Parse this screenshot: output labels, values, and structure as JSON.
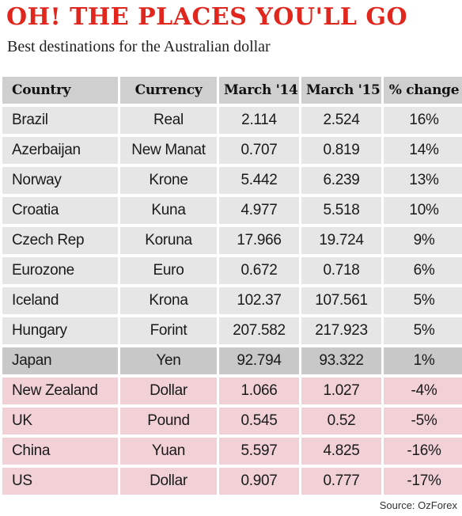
{
  "title": "OH! THE PLACES YOU'LL GO",
  "subtitle": "Best destinations for the Australian dollar",
  "source": "Source: OzForex",
  "colors": {
    "title": "#e0261d",
    "header_bg": "#cfcfcf",
    "row_bg": "#e6e6e6",
    "highlight_bg": "#c8c8c8",
    "negative_bg": "#f1d1d6"
  },
  "chart_data": {
    "type": "table",
    "columns": [
      "Country",
      "Currency",
      "March '14",
      "March '15",
      "% change"
    ],
    "rows": [
      {
        "country": "Brazil",
        "currency": "Real",
        "mar14": "2.114",
        "mar15": "2.524",
        "change": "16%",
        "tone": "grey"
      },
      {
        "country": "Azerbaijan",
        "currency": "New Manat",
        "mar14": "0.707",
        "mar15": "0.819",
        "change": "14%",
        "tone": "grey"
      },
      {
        "country": "Norway",
        "currency": "Krone",
        "mar14": "5.442",
        "mar15": "6.239",
        "change": "13%",
        "tone": "grey"
      },
      {
        "country": "Croatia",
        "currency": "Kuna",
        "mar14": "4.977",
        "mar15": "5.518",
        "change": "10%",
        "tone": "grey"
      },
      {
        "country": "Czech Rep",
        "currency": "Koruna",
        "mar14": "17.966",
        "mar15": "19.724",
        "change": "9%",
        "tone": "grey"
      },
      {
        "country": "Eurozone",
        "currency": "Euro",
        "mar14": "0.672",
        "mar15": "0.718",
        "change": "6%",
        "tone": "grey"
      },
      {
        "country": "Iceland",
        "currency": "Krona",
        "mar14": "102.37",
        "mar15": "107.561",
        "change": "5%",
        "tone": "grey"
      },
      {
        "country": "Hungary",
        "currency": "Forint",
        "mar14": "207.582",
        "mar15": "217.923",
        "change": "5%",
        "tone": "grey"
      },
      {
        "country": "Japan",
        "currency": "Yen",
        "mar14": "92.794",
        "mar15": "93.322",
        "change": "1%",
        "tone": "highlight"
      },
      {
        "country": "New Zealand",
        "currency": "Dollar",
        "mar14": "1.066",
        "mar15": "1.027",
        "change": "-4%",
        "tone": "pink"
      },
      {
        "country": "UK",
        "currency": "Pound",
        "mar14": "0.545",
        "mar15": "0.52",
        "change": "-5%",
        "tone": "pink"
      },
      {
        "country": "China",
        "currency": "Yuan",
        "mar14": "5.597",
        "mar15": "4.825",
        "change": "-16%",
        "tone": "pink"
      },
      {
        "country": "US",
        "currency": "Dollar",
        "mar14": "0.907",
        "mar15": "0.777",
        "change": "-17%",
        "tone": "pink"
      }
    ]
  }
}
